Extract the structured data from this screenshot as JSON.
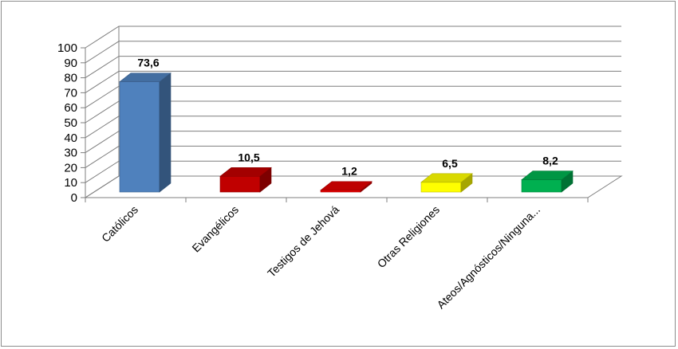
{
  "chart_data": {
    "type": "bar",
    "title": "",
    "xlabel": "",
    "ylabel": "",
    "ylim": [
      0,
      100
    ],
    "yticks": [
      0,
      10,
      20,
      30,
      40,
      50,
      60,
      70,
      80,
      90,
      100
    ],
    "grid": true,
    "style": "3d-column",
    "categories": [
      "Católicos",
      "Evangélicos",
      "Testigos de Jehová",
      "Otras Religiones",
      "Ateos/Agnósticos/Ninguna..."
    ],
    "values": [
      73.6,
      10.5,
      1.2,
      6.5,
      8.2
    ],
    "data_labels": [
      "73,6",
      "10,5",
      "1,2",
      "6,5",
      "8,2"
    ],
    "colors": [
      "#4f81bd",
      "#c00000",
      "#e00000",
      "#ffff00",
      "#00b050"
    ]
  }
}
